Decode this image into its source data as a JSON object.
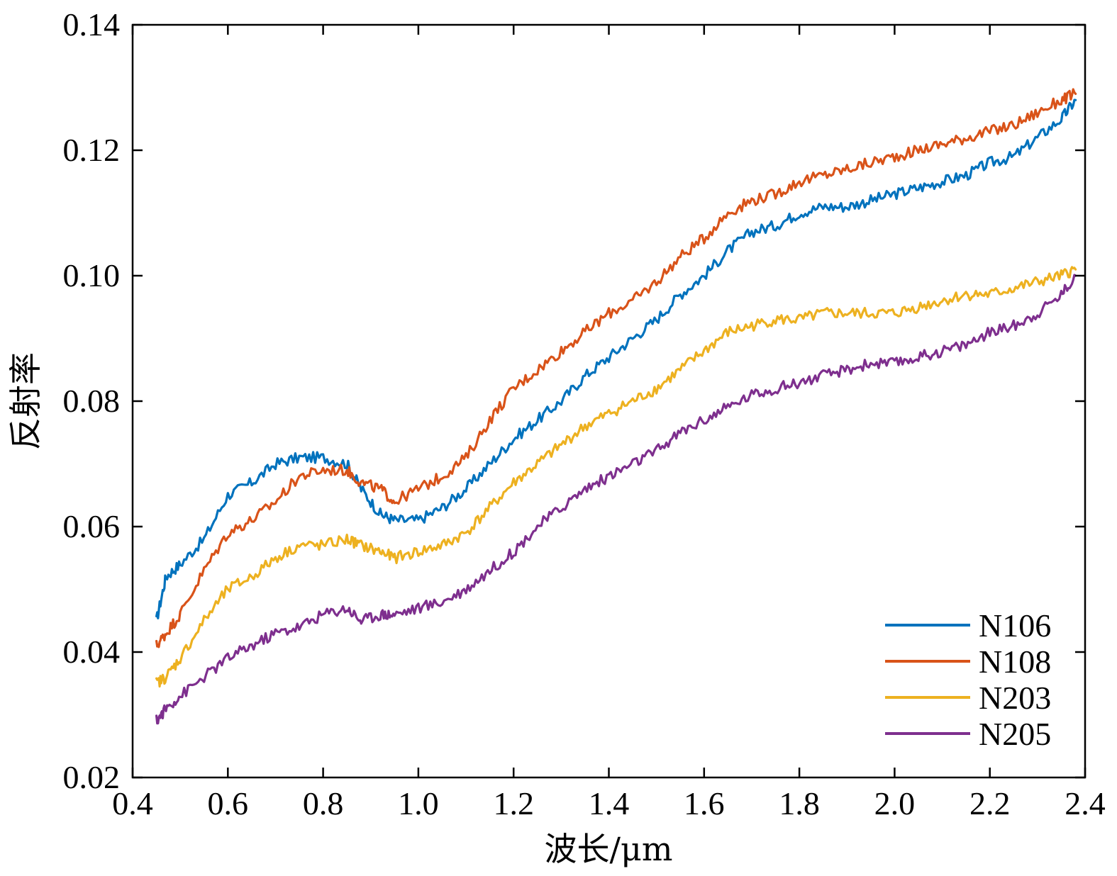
{
  "chart_data": {
    "type": "line",
    "title": "",
    "xlabel": "波长/μm",
    "ylabel": "反射率",
    "xlim": [
      0.4,
      2.4
    ],
    "ylim": [
      0.02,
      0.14
    ],
    "xticks": [
      "0.4",
      "0.6",
      "0.8",
      "1.0",
      "1.2",
      "1.4",
      "1.6",
      "1.8",
      "2.0",
      "2.2",
      "2.4"
    ],
    "yticks": [
      "0.02",
      "0.04",
      "0.06",
      "0.08",
      "0.10",
      "0.12",
      "0.14"
    ],
    "grid": false,
    "legend_position": "bottom-right",
    "series": [
      {
        "name": "N106",
        "color": "#0072BD",
        "x": [
          0.45,
          0.47,
          0.5,
          0.55,
          0.6,
          0.65,
          0.7,
          0.75,
          0.8,
          0.85,
          0.88,
          0.92,
          0.95,
          1.0,
          1.05,
          1.1,
          1.15,
          1.2,
          1.25,
          1.3,
          1.35,
          1.4,
          1.45,
          1.5,
          1.55,
          1.6,
          1.65,
          1.7,
          1.75,
          1.8,
          1.85,
          1.9,
          1.95,
          2.0,
          2.05,
          2.1,
          2.15,
          2.2,
          2.25,
          2.3,
          2.35,
          2.38
        ],
        "y": [
          0.045,
          0.052,
          0.054,
          0.058,
          0.065,
          0.067,
          0.07,
          0.071,
          0.071,
          0.07,
          0.066,
          0.062,
          0.061,
          0.061,
          0.063,
          0.066,
          0.07,
          0.074,
          0.077,
          0.08,
          0.084,
          0.087,
          0.09,
          0.093,
          0.097,
          0.1,
          0.104,
          0.107,
          0.108,
          0.11,
          0.111,
          0.111,
          0.112,
          0.113,
          0.114,
          0.115,
          0.116,
          0.118,
          0.119,
          0.122,
          0.125,
          0.128
        ]
      },
      {
        "name": "N108",
        "color": "#D95319",
        "x": [
          0.45,
          0.47,
          0.5,
          0.55,
          0.6,
          0.65,
          0.7,
          0.75,
          0.8,
          0.85,
          0.88,
          0.92,
          0.95,
          1.0,
          1.05,
          1.1,
          1.15,
          1.2,
          1.25,
          1.3,
          1.35,
          1.4,
          1.45,
          1.5,
          1.55,
          1.6,
          1.65,
          1.7,
          1.75,
          1.8,
          1.85,
          1.9,
          1.95,
          2.0,
          2.05,
          2.1,
          2.15,
          2.2,
          2.25,
          2.3,
          2.35,
          2.38
        ],
        "y": [
          0.041,
          0.043,
          0.046,
          0.053,
          0.059,
          0.061,
          0.064,
          0.068,
          0.069,
          0.069,
          0.067,
          0.066,
          0.064,
          0.066,
          0.068,
          0.071,
          0.077,
          0.082,
          0.085,
          0.088,
          0.091,
          0.094,
          0.096,
          0.099,
          0.103,
          0.106,
          0.11,
          0.112,
          0.113,
          0.115,
          0.116,
          0.117,
          0.118,
          0.119,
          0.12,
          0.121,
          0.122,
          0.123,
          0.124,
          0.126,
          0.128,
          0.129
        ]
      },
      {
        "name": "N203",
        "color": "#EDB120",
        "x": [
          0.45,
          0.47,
          0.5,
          0.55,
          0.6,
          0.65,
          0.7,
          0.75,
          0.8,
          0.85,
          0.88,
          0.92,
          0.95,
          1.0,
          1.05,
          1.1,
          1.15,
          1.2,
          1.25,
          1.3,
          1.35,
          1.4,
          1.45,
          1.5,
          1.55,
          1.6,
          1.65,
          1.7,
          1.75,
          1.8,
          1.85,
          1.9,
          1.95,
          2.0,
          2.05,
          2.1,
          2.15,
          2.2,
          2.25,
          2.3,
          2.35,
          2.38
        ],
        "y": [
          0.035,
          0.036,
          0.039,
          0.045,
          0.05,
          0.052,
          0.055,
          0.057,
          0.057,
          0.058,
          0.057,
          0.056,
          0.055,
          0.056,
          0.057,
          0.059,
          0.063,
          0.067,
          0.07,
          0.073,
          0.076,
          0.078,
          0.08,
          0.082,
          0.085,
          0.088,
          0.091,
          0.092,
          0.093,
          0.093,
          0.094,
          0.094,
          0.094,
          0.094,
          0.095,
          0.096,
          0.097,
          0.097,
          0.098,
          0.099,
          0.1,
          0.101
        ]
      },
      {
        "name": "N205",
        "color": "#7E2F8E",
        "x": [
          0.45,
          0.47,
          0.5,
          0.55,
          0.6,
          0.65,
          0.7,
          0.75,
          0.8,
          0.85,
          0.88,
          0.92,
          0.95,
          1.0,
          1.05,
          1.1,
          1.15,
          1.2,
          1.25,
          1.3,
          1.35,
          1.4,
          1.45,
          1.5,
          1.55,
          1.6,
          1.65,
          1.7,
          1.75,
          1.8,
          1.85,
          1.9,
          1.95,
          2.0,
          2.05,
          2.1,
          2.15,
          2.2,
          2.25,
          2.3,
          2.35,
          2.38
        ],
        "y": [
          0.029,
          0.031,
          0.033,
          0.036,
          0.039,
          0.041,
          0.043,
          0.044,
          0.046,
          0.047,
          0.045,
          0.046,
          0.046,
          0.047,
          0.048,
          0.05,
          0.053,
          0.056,
          0.06,
          0.063,
          0.066,
          0.068,
          0.07,
          0.072,
          0.075,
          0.077,
          0.079,
          0.081,
          0.082,
          0.083,
          0.084,
          0.085,
          0.086,
          0.086,
          0.087,
          0.088,
          0.089,
          0.091,
          0.092,
          0.094,
          0.097,
          0.1
        ]
      }
    ]
  }
}
